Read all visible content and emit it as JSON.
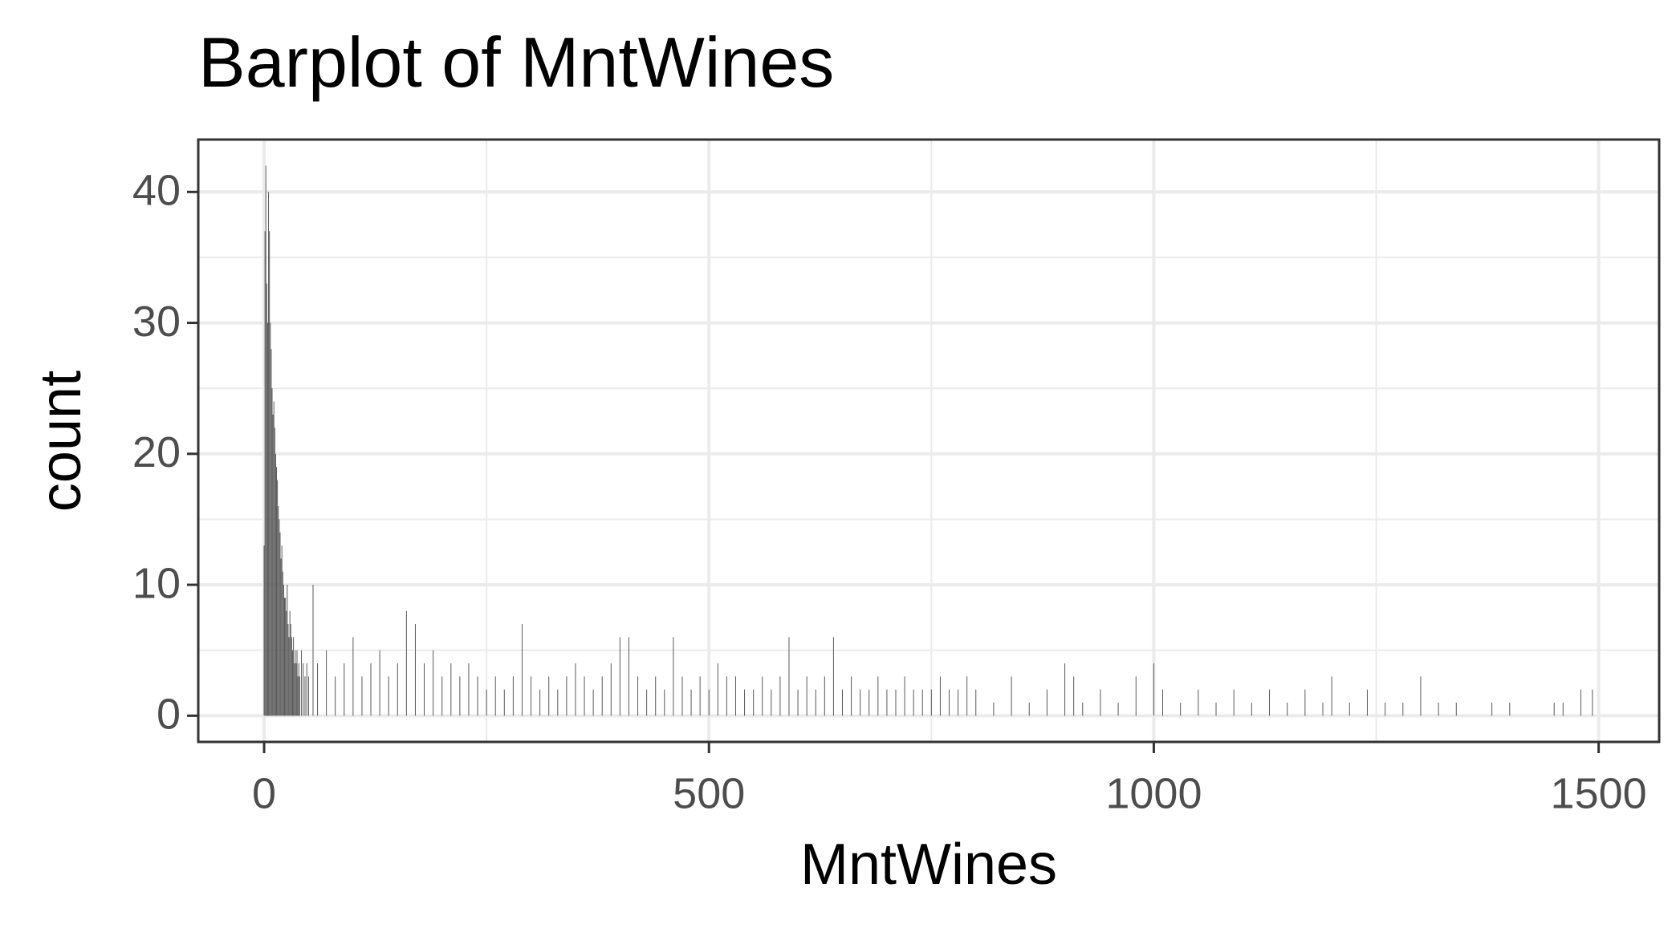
{
  "chart_data": {
    "type": "bar",
    "title": "Barplot of MntWines",
    "x_label": "MntWines",
    "y_label": "count",
    "x": [
      0,
      1,
      2,
      3,
      4,
      5,
      6,
      7,
      8,
      9,
      10,
      11,
      12,
      13,
      14,
      15,
      16,
      17,
      18,
      19,
      20,
      21,
      22,
      23,
      24,
      25,
      26,
      27,
      28,
      29,
      30,
      31,
      32,
      33,
      34,
      35,
      36,
      37,
      38,
      39,
      40,
      42,
      44,
      46,
      48,
      50,
      55,
      60,
      70,
      80,
      90,
      100,
      110,
      120,
      130,
      140,
      150,
      160,
      170,
      180,
      190,
      200,
      210,
      220,
      230,
      240,
      250,
      260,
      270,
      280,
      290,
      300,
      310,
      320,
      330,
      340,
      350,
      360,
      370,
      380,
      390,
      400,
      410,
      420,
      430,
      440,
      450,
      460,
      470,
      480,
      490,
      500,
      510,
      520,
      530,
      540,
      550,
      560,
      570,
      580,
      590,
      600,
      610,
      620,
      630,
      640,
      650,
      660,
      670,
      680,
      690,
      700,
      710,
      720,
      730,
      740,
      750,
      760,
      770,
      780,
      790,
      800,
      820,
      840,
      860,
      880,
      900,
      910,
      920,
      940,
      960,
      980,
      1000,
      1010,
      1030,
      1050,
      1070,
      1090,
      1110,
      1130,
      1150,
      1170,
      1190,
      1200,
      1220,
      1240,
      1260,
      1280,
      1300,
      1320,
      1340,
      1380,
      1400,
      1450,
      1460,
      1480,
      1493
    ],
    "values": [
      13,
      37,
      42,
      33,
      30,
      40,
      37,
      30,
      28,
      25,
      23,
      24,
      22,
      20,
      19,
      18,
      16,
      15,
      14,
      12,
      13,
      11,
      10,
      9,
      9,
      8,
      10,
      7,
      6,
      8,
      7,
      6,
      5,
      6,
      4,
      5,
      4,
      5,
      3,
      4,
      3,
      5,
      4,
      3,
      4,
      3,
      10,
      4,
      5,
      3,
      4,
      6,
      3,
      4,
      5,
      3,
      4,
      8,
      7,
      4,
      5,
      3,
      4,
      3,
      4,
      3,
      2,
      3,
      2,
      3,
      7,
      3,
      2,
      3,
      2,
      3,
      4,
      3,
      2,
      3,
      4,
      6,
      6,
      3,
      2,
      3,
      2,
      6,
      3,
      2,
      3,
      2,
      4,
      3,
      3,
      2,
      2,
      3,
      2,
      3,
      6,
      2,
      3,
      2,
      3,
      6,
      2,
      3,
      2,
      2,
      3,
      2,
      2,
      3,
      2,
      2,
      2,
      3,
      2,
      2,
      3,
      2,
      1,
      3,
      1,
      2,
      4,
      3,
      1,
      2,
      1,
      3,
      4,
      2,
      1,
      2,
      1,
      2,
      1,
      2,
      1,
      2,
      1,
      3,
      1,
      2,
      1,
      1,
      3,
      1,
      1,
      1,
      1,
      1,
      1,
      2,
      2
    ],
    "color": "#595959",
    "xlim": [
      -74,
      1568
    ],
    "xticks": [
      0,
      500,
      1000,
      1500
    ],
    "ylim": [
      -2,
      44
    ],
    "yticks": [
      0,
      10,
      20,
      30,
      40
    ],
    "grid": true,
    "minor_grid": true
  }
}
